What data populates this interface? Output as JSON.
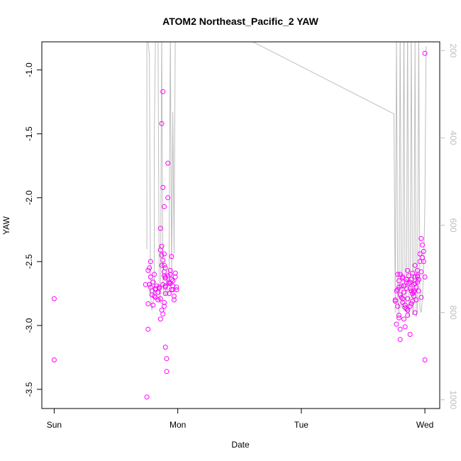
{
  "chart_data": {
    "type": "scatter",
    "title": "ATOM2 Northeast_Pacific_2 YAW",
    "xlabel": "Date",
    "ylabel": "YAW",
    "x_ticks": [
      "Sun",
      "Mon",
      "Tue",
      "Wed"
    ],
    "x_tick_positions_days": [
      0,
      1,
      2,
      3
    ],
    "xlim_days": [
      -0.1,
      3.12
    ],
    "ylim": [
      -3.65,
      -0.78
    ],
    "y_ticks": [
      -1.0,
      -1.5,
      -2.0,
      -2.5,
      -3.0,
      -3.5
    ],
    "y_tick_labels": [
      "-1.0",
      "-1.5",
      "-2.0",
      "-2.5",
      "-3.0",
      "-3.5"
    ],
    "y2_ticks": [
      200,
      400,
      600,
      800,
      1000
    ],
    "y2_tick_labels": [
      "200",
      "400",
      "600",
      "800",
      "1000"
    ],
    "y2lim": [
      1020,
      180
    ],
    "grid": false,
    "series": [
      {
        "kind": "points",
        "color": "#ff00ff",
        "x": [
          0.0,
          0.0,
          0.75,
          0.76,
          0.76,
          0.77,
          0.77,
          0.78,
          0.78,
          0.79,
          0.79,
          0.8,
          0.8,
          0.81,
          0.82,
          0.82,
          0.83,
          0.84,
          0.84,
          0.85,
          0.86,
          0.86,
          0.87,
          0.87,
          0.88,
          0.88,
          0.89,
          0.89,
          0.9,
          0.9,
          0.91,
          0.91,
          0.92,
          0.92,
          0.93,
          0.93,
          0.94,
          0.94,
          0.95,
          0.95,
          0.96,
          0.96,
          0.97,
          0.97,
          0.98,
          0.98,
          0.99,
          0.99,
          0.78,
          0.8,
          0.82,
          0.84,
          0.86,
          0.88,
          0.9,
          0.92,
          0.94,
          0.96,
          0.76,
          0.81,
          0.85,
          0.89,
          0.93,
          0.95,
          0.86,
          0.87,
          0.88,
          0.87,
          0.89,
          0.9,
          0.9,
          0.87,
          0.88,
          0.89,
          0.9,
          0.74,
          0.89,
          0.89,
          0.9,
          2.76,
          2.77,
          2.77,
          2.78,
          2.78,
          2.79,
          2.79,
          2.8,
          2.8,
          2.81,
          2.81,
          2.82,
          2.82,
          2.83,
          2.83,
          2.84,
          2.84,
          2.85,
          2.85,
          2.86,
          2.86,
          2.87,
          2.87,
          2.88,
          2.88,
          2.89,
          2.89,
          2.9,
          2.9,
          2.91,
          2.91,
          2.92,
          2.92,
          2.93,
          2.93,
          2.94,
          2.94,
          2.95,
          2.95,
          2.96,
          2.96,
          2.97,
          2.97,
          2.98,
          2.98,
          2.99,
          2.99,
          3.0,
          3.0,
          3.0,
          2.78,
          2.8,
          2.82,
          2.84,
          2.86,
          2.88,
          2.9,
          2.92,
          2.94,
          2.8,
          2.83,
          2.86,
          2.89,
          2.92,
          2.79,
          2.85,
          2.91,
          2.97,
          2.76,
          2.79,
          2.82,
          2.85,
          2.88,
          2.91,
          2.94
        ],
        "y": [
          -2.79,
          -3.27,
          -3.56,
          -3.03,
          -2.83,
          -2.68,
          -2.55,
          -2.7,
          -2.5,
          -2.73,
          -2.76,
          -2.84,
          -2.66,
          -2.6,
          -2.72,
          -2.78,
          -2.69,
          -2.8,
          -2.74,
          -2.71,
          -2.95,
          -2.24,
          -2.38,
          -1.42,
          -1.17,
          -1.92,
          -2.07,
          -2.44,
          -2.55,
          -3.17,
          -3.26,
          -3.36,
          -1.73,
          -2.0,
          -2.75,
          -2.67,
          -2.6,
          -2.57,
          -2.46,
          -2.64,
          -2.72,
          -2.69,
          -2.8,
          -2.77,
          -2.62,
          -2.59,
          -2.7,
          -2.72,
          -2.62,
          -2.66,
          -2.71,
          -2.74,
          -2.79,
          -2.68,
          -2.63,
          -2.61,
          -2.67,
          -2.65,
          -2.57,
          -2.77,
          -2.7,
          -2.82,
          -2.66,
          -2.72,
          -2.41,
          -2.45,
          -2.49,
          -2.53,
          -2.58,
          -2.62,
          -2.7,
          -2.88,
          -2.91,
          -2.85,
          -2.75,
          -2.68,
          -2.53,
          -2.61,
          -2.69,
          -2.8,
          -2.99,
          -2.73,
          -2.6,
          -2.85,
          -2.65,
          -2.92,
          -3.03,
          -3.11,
          -2.78,
          -2.69,
          -2.62,
          -2.82,
          -2.74,
          -2.95,
          -3.01,
          -2.86,
          -2.64,
          -2.71,
          -2.92,
          -2.79,
          -2.67,
          -2.61,
          -3.07,
          -2.85,
          -2.73,
          -2.64,
          -2.81,
          -2.59,
          -2.68,
          -2.77,
          -2.53,
          -2.62,
          -2.7,
          -2.8,
          -2.66,
          -2.57,
          -2.73,
          -2.64,
          -2.5,
          -2.44,
          -2.58,
          -2.32,
          -2.47,
          -2.37,
          -2.42,
          -2.5,
          -0.87,
          -2.62,
          -3.27,
          -2.72,
          -2.76,
          -2.79,
          -2.84,
          -2.88,
          -2.71,
          -2.75,
          -2.67,
          -2.62,
          -2.6,
          -2.69,
          -2.57,
          -2.83,
          -2.9,
          -2.94,
          -2.66,
          -2.73,
          -2.78,
          -2.81,
          -2.7,
          -2.63,
          -2.87,
          -2.66,
          -2.74,
          -2.61
        ]
      },
      {
        "kind": "line",
        "axis": "right",
        "color": "#bebebe",
        "x": [
          0.75,
          0.75,
          0.77,
          0.78,
          0.79,
          0.81,
          0.81,
          0.82,
          0.84,
          0.85,
          0.86,
          0.87,
          0.87,
          0.88,
          0.9,
          0.91,
          0.92,
          0.93,
          0.93,
          0.94,
          0.95,
          0.96,
          0.97,
          0.98,
          0.98,
          1.4,
          2.75,
          2.76,
          2.77,
          2.78,
          2.79,
          2.8,
          2.81,
          2.82,
          2.83,
          2.84,
          2.85,
          2.86,
          2.87,
          2.88,
          2.89,
          2.9,
          2.91,
          2.92,
          2.93,
          2.94,
          2.95,
          2.96,
          2.97,
          2.98,
          2.99,
          3.0,
          3.01
        ],
        "y": [
          655,
          145,
          210,
          760,
          795,
          760,
          410,
          160,
          150,
          770,
          780,
          150,
          155,
          745,
          762,
          725,
          760,
          750,
          640,
          155,
          720,
          340,
          665,
          150,
          155,
          150,
          345,
          800,
          160,
          770,
          805,
          140,
          785,
          790,
          125,
          785,
          800,
          130,
          810,
          790,
          150,
          805,
          800,
          175,
          810,
          795,
          140,
          790,
          800,
          770,
          690,
          550,
          190
        ]
      }
    ]
  }
}
